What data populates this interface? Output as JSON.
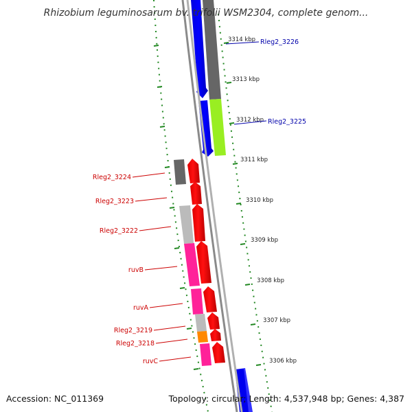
{
  "title": "Rhizobium leguminosarum bv. trifolii WSM2304, complete genom...",
  "footer": {
    "accession": "Accession: NC_011369",
    "stats": "Topology: circular; Length: 4,537,948 bp; Genes: 4,387"
  },
  "ruler": {
    "labels": [
      "3314 kbp",
      "3313 kbp",
      "3312 kbp",
      "3311 kbp",
      "3310 kbp",
      "3309 kbp",
      "3308 kbp",
      "3307 kbp",
      "3306 kbp"
    ]
  },
  "genes": [
    {
      "label": "Rleg2_3226",
      "color": "#0000aa"
    },
    {
      "label": "Rleg2_3225",
      "color": "#0000aa"
    },
    {
      "label": "Rleg2_3224",
      "color": "#cc0000"
    },
    {
      "label": "Rleg2_3223",
      "color": "#cc0000"
    },
    {
      "label": "Rleg2_3222",
      "color": "#cc0000"
    },
    {
      "label": "ruvB",
      "color": "#cc0000"
    },
    {
      "label": "ruvA",
      "color": "#cc0000"
    },
    {
      "label": "Rleg2_3219",
      "color": "#cc0000"
    },
    {
      "label": "Rleg2_3218",
      "color": "#cc0000"
    },
    {
      "label": "ruvC",
      "color": "#cc0000"
    }
  ],
  "colors": {
    "backbone": "#8a8a8a",
    "forward_strand_gene": "#0000ee",
    "reverse_strand_gene": "#ee0000",
    "cog_dark_gray": "#666666",
    "cog_light_gray": "#bbbbbb",
    "cog_yellow_green": "#99ee22",
    "cog_pink": "#ff2299",
    "cog_orange": "#ff8800",
    "tick_green": "#228822"
  }
}
